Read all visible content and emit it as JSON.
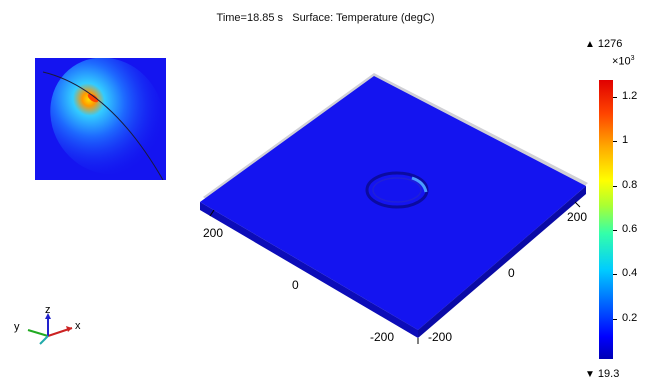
{
  "plot": {
    "title": "Time=18.85 s   Surface: Temperature (degC)"
  },
  "axes": {
    "left_ticks": [
      "200",
      "0",
      "-200"
    ],
    "right_ticks": [
      "200",
      "0",
      "-200"
    ]
  },
  "colorbar": {
    "max_label": "1276",
    "min_label": "19.3",
    "multiplier": "×10",
    "multiplier_exp": "3",
    "ticks": [
      "1.2",
      "1",
      "0.8",
      "0.6",
      "0.4",
      "0.2"
    ],
    "tick_values": [
      1.2,
      1.0,
      0.8,
      0.6,
      0.4,
      0.2
    ],
    "range": [
      0.0193,
      1.276
    ]
  },
  "triad": {
    "x_label": "x",
    "y_label": "y",
    "z_label": "z"
  },
  "colors": {
    "plate": "#1414f0",
    "background": "#ffffff",
    "hot": "#ff3300"
  }
}
